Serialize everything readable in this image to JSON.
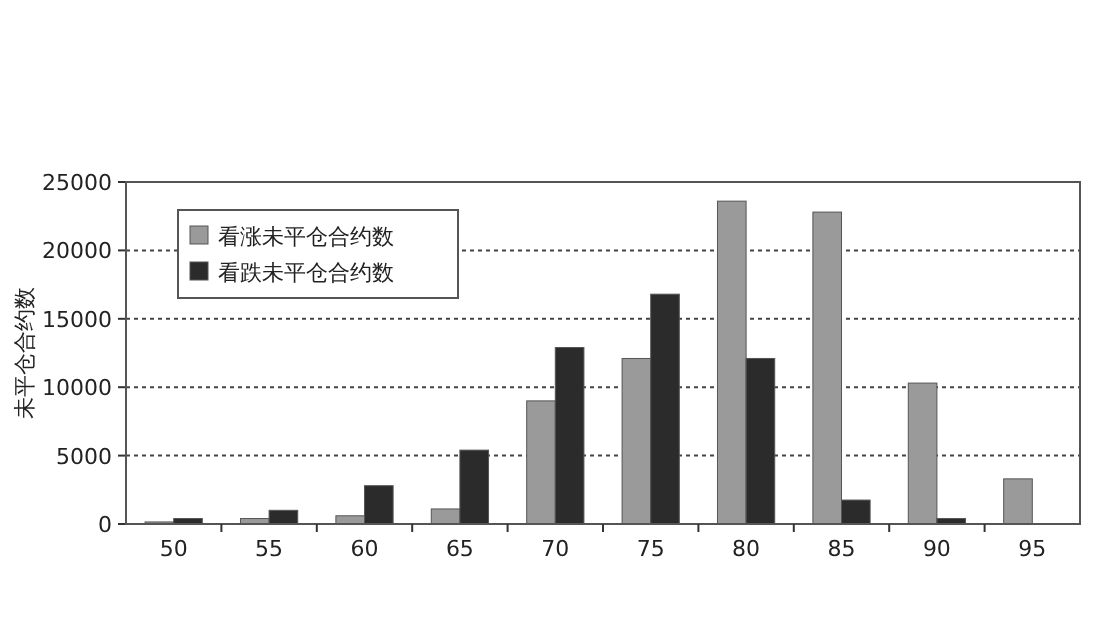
{
  "chart_data": {
    "type": "bar",
    "ylabel": "未平仓合约数",
    "categories": [
      "50",
      "55",
      "60",
      "65",
      "70",
      "75",
      "80",
      "85",
      "90",
      "95"
    ],
    "series": [
      {
        "name": "看涨未平仓合约数",
        "color": "#9a9a9a",
        "values": [
          150,
          400,
          600,
          1100,
          9000,
          12100,
          23600,
          22800,
          10300,
          3300
        ]
      },
      {
        "name": "看跌未平仓合约数",
        "color": "#2b2b2b",
        "values": [
          400,
          1000,
          2800,
          5400,
          12900,
          16800,
          12100,
          1750,
          400,
          null
        ]
      }
    ],
    "ylim": [
      0,
      25000
    ],
    "yticks": [
      0,
      5000,
      10000,
      15000,
      20000,
      25000
    ],
    "grid": "y",
    "legend": "top left"
  }
}
